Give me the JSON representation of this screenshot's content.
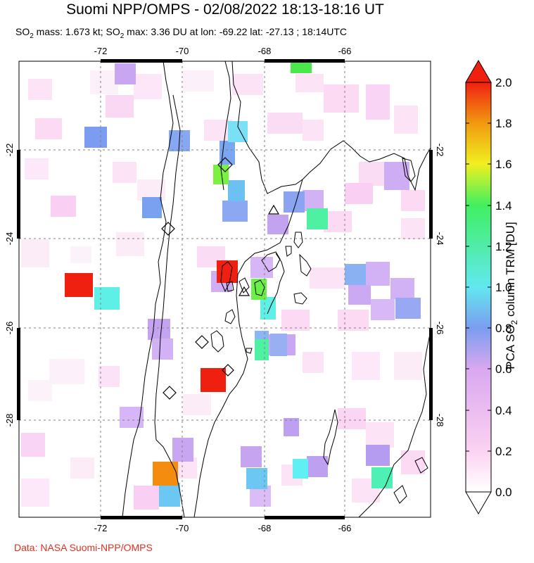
{
  "header": {
    "title": "Suomi NPP/OMPS - 02/08/2022 18:13-18:16 UT",
    "subtitle_parts": [
      "SO",
      "2",
      " mass: 1.673 kt; SO",
      "2",
      " max: 3.36 DU at lon: -69.22 lat: -27.13 ; 18:14UTC"
    ]
  },
  "map": {
    "lon_ticks": [
      "-72",
      "-70",
      "-68",
      "-66"
    ],
    "lat_ticks": [
      "-22",
      "-24",
      "-26",
      "-28"
    ]
  },
  "colorbar": {
    "ticks": [
      "2.0",
      "1.8",
      "1.6",
      "1.4",
      "1.2",
      "1.0",
      "0.8",
      "0.6",
      "0.4",
      "0.2",
      "0.0"
    ],
    "label_parts": [
      "PCA SO",
      "2",
      " column TRM [DU]"
    ],
    "colors": [
      "#ffffff",
      "#fcd2f2",
      "#d9a8f0",
      "#7b9df0",
      "#62e8f0",
      "#40f060",
      "#f0f020",
      "#f09a10",
      "#f02010"
    ]
  },
  "footer": {
    "credit": "Data: NASA Suomi-NPP/OMPS"
  }
}
